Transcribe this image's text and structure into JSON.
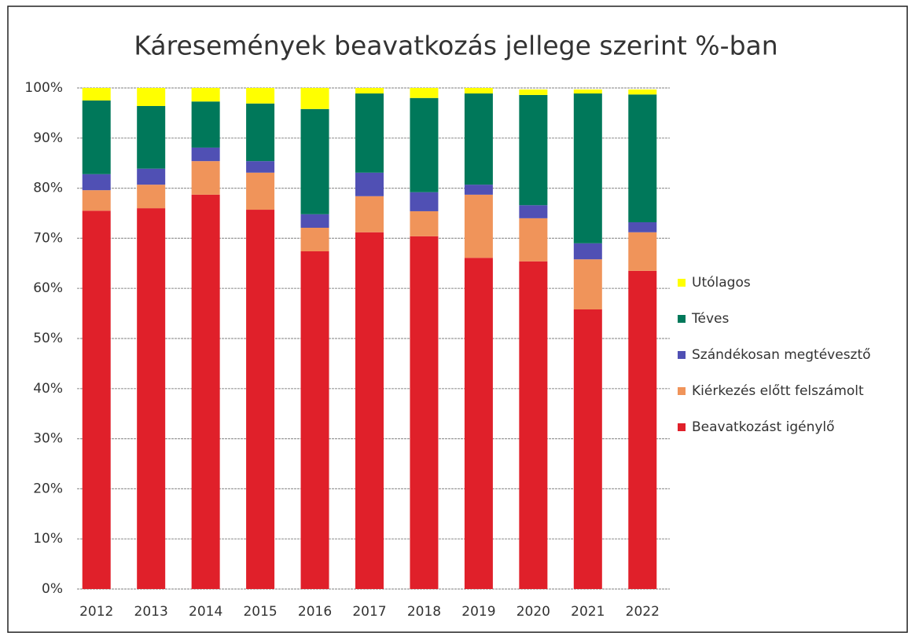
{
  "chart_data": {
    "type": "stacked_bar",
    "title": "Káresemények beavatkozás jellege szerint %-ban",
    "categories": [
      "2012",
      "2013",
      "2014",
      "2015",
      "2016",
      "2017",
      "2018",
      "2019",
      "2020",
      "2021",
      "2022"
    ],
    "series": [
      {
        "name": "Beavatkozást igénylő",
        "color": "#e0202a",
        "values": [
          75.5,
          76,
          78.7,
          75.7,
          67.4,
          71.2,
          70.4,
          66.1,
          65.4,
          55.8,
          63.5
        ]
      },
      {
        "name": "Kiérkezés előtt felszámolt",
        "color": "#f0945a",
        "values": [
          4.1,
          4.7,
          6.7,
          7.4,
          4.7,
          7.2,
          5,
          12.6,
          8.6,
          10,
          7.7
        ]
      },
      {
        "name": "Szándékosan megtévesztő",
        "color": "#5050b4",
        "values": [
          3.2,
          3.2,
          2.7,
          2.3,
          2.7,
          4.7,
          3.8,
          2,
          2.6,
          3.2,
          2
        ]
      },
      {
        "name": "Téves",
        "color": "#00785a",
        "values": [
          14.7,
          12.5,
          9.2,
          11.5,
          21,
          15.8,
          18.8,
          18.2,
          22,
          29.9,
          25.5
        ]
      },
      {
        "name": "Utólagos",
        "color": "#ffff00",
        "values": [
          2.5,
          3.6,
          2.7,
          3.1,
          4.2,
          1.1,
          2,
          1.1,
          1.1,
          0.8,
          1
        ]
      }
    ],
    "ylim": [
      0,
      100
    ],
    "yticks": [
      {
        "value": 0,
        "label": "0%"
      },
      {
        "value": 10,
        "label": "10%"
      },
      {
        "value": 20,
        "label": "20%"
      },
      {
        "value": 30,
        "label": "30%"
      },
      {
        "value": 40,
        "label": "40%"
      },
      {
        "value": 50,
        "label": "50%"
      },
      {
        "value": 60,
        "label": "60%"
      },
      {
        "value": 70,
        "label": "70%"
      },
      {
        "value": 80,
        "label": "80%"
      },
      {
        "value": 90,
        "label": "90%"
      },
      {
        "value": 100,
        "label": "100%"
      }
    ],
    "grid": true,
    "legend": "right"
  }
}
